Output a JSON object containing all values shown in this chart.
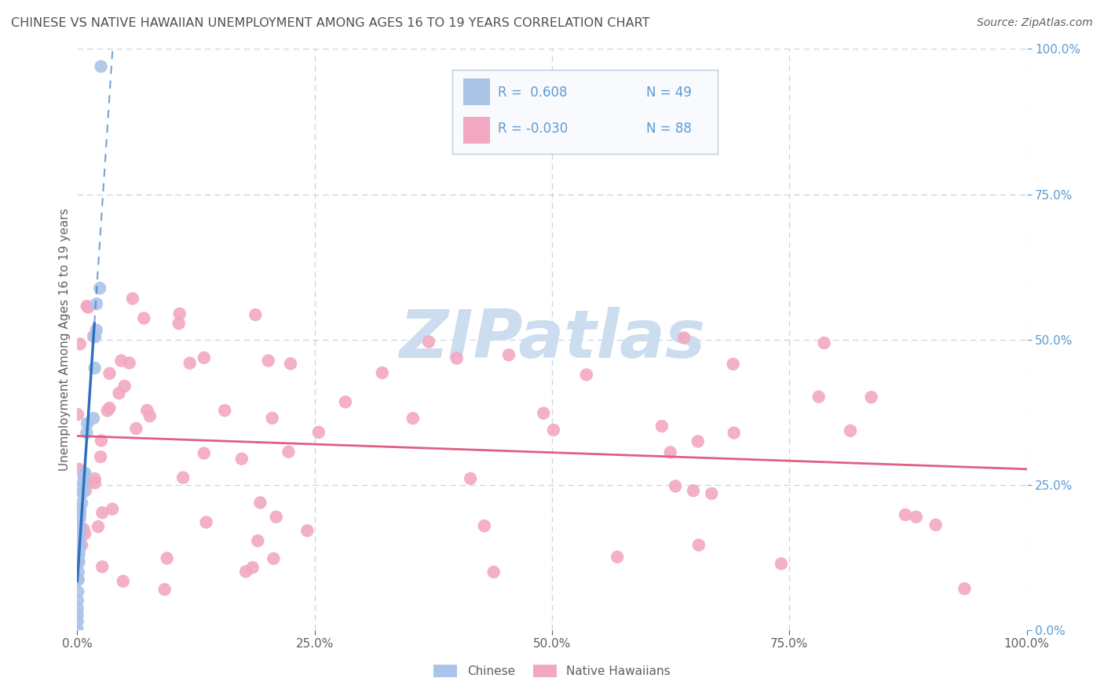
{
  "title": "CHINESE VS NATIVE HAWAIIAN UNEMPLOYMENT AMONG AGES 16 TO 19 YEARS CORRELATION CHART",
  "source": "Source: ZipAtlas.com",
  "ylabel": "Unemployment Among Ages 16 to 19 years",
  "xlim": [
    0,
    1.0
  ],
  "ylim": [
    0,
    1.0
  ],
  "chinese_color": "#aac4e8",
  "hawaiian_color": "#f2a8c0",
  "chinese_line_color": "#3070c0",
  "hawaiian_line_color": "#e06080",
  "watermark_color": "#ccddf0",
  "background_color": "#ffffff",
  "grid_color": "#c8d4e4",
  "title_color": "#505050",
  "axis_label_color": "#606060",
  "right_tick_color": "#5b9bd5",
  "legend_box_color": "#e8eef8",
  "legend_border_color": "#c0cce0",
  "chinese_r": "R =  0.608",
  "chinese_n": "N = 49",
  "hawaiian_r": "R = -0.030",
  "hawaiian_n": "N = 88"
}
